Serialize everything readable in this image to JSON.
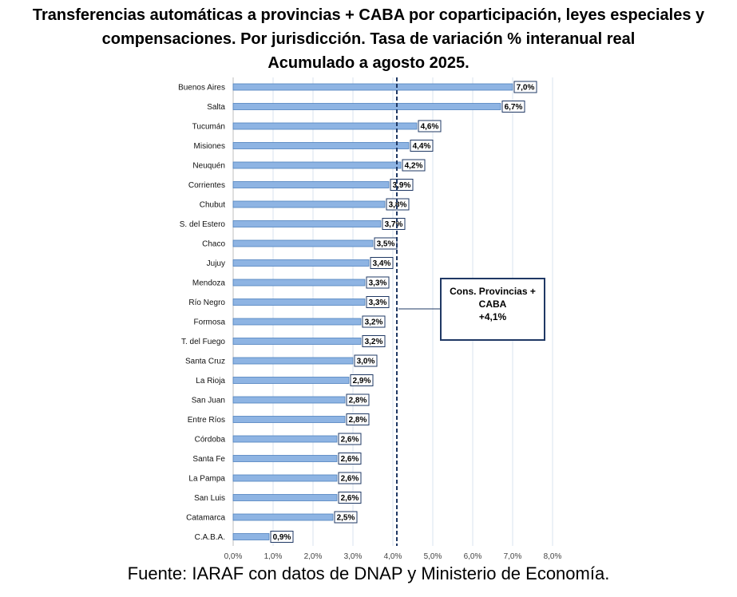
{
  "title_lines": [
    "Transferencias automáticas a provincias + CABA por coparticipación, leyes especiales y",
    "compensaciones. Por jurisdicción. Tasa de variación % interanual real",
    "Acumulado a agosto 2025."
  ],
  "source": "Fuente: IARAF con datos de DNAP y Ministerio de Economía.",
  "annotation": {
    "lines": [
      "Cons. Provincias +",
      "CABA",
      "+4,1%"
    ],
    "reference_value": 4.1
  },
  "colors": {
    "bar_fill": "#8eb4e3",
    "bar_stroke": "#4f81bd",
    "reference_line": "#1f3864",
    "grid": "#d9e3ef"
  },
  "chart_data": {
    "type": "bar",
    "orientation": "horizontal",
    "categories": [
      "Buenos Aires",
      "Salta",
      "Tucumán",
      "Misiones",
      "Neuquén",
      "Corrientes",
      "Chubut",
      "S. del Estero",
      "Chaco",
      "Jujuy",
      "Mendoza",
      "Río Negro",
      "Formosa",
      "T. del Fuego",
      "Santa Cruz",
      "La Rioja",
      "San Juan",
      "Entre Ríos",
      "Córdoba",
      "Santa Fe",
      "La Pampa",
      "San Luis",
      "Catamarca",
      "C.A.B.A."
    ],
    "values": [
      7.0,
      6.7,
      4.6,
      4.4,
      4.2,
      3.9,
      3.8,
      3.7,
      3.5,
      3.4,
      3.3,
      3.3,
      3.2,
      3.2,
      3.0,
      2.9,
      2.8,
      2.8,
      2.6,
      2.6,
      2.6,
      2.6,
      2.5,
      0.9
    ],
    "data_labels": [
      "7,0%",
      "6,7%",
      "4,6%",
      "4,4%",
      "4,2%",
      "3,9%",
      "3,8%",
      "3,7%",
      "3,5%",
      "3,4%",
      "3,3%",
      "3,3%",
      "3,2%",
      "3,2%",
      "3,0%",
      "2,9%",
      "2,8%",
      "2,8%",
      "2,6%",
      "2,6%",
      "2,6%",
      "2,6%",
      "2,5%",
      "0,9%"
    ],
    "x_ticks": [
      "0,0%",
      "1,0%",
      "2,0%",
      "3,0%",
      "4,0%",
      "5,0%",
      "6,0%",
      "7,0%",
      "8,0%"
    ],
    "xlim": [
      0,
      8
    ],
    "grid": true,
    "reference_line": 4.1
  }
}
